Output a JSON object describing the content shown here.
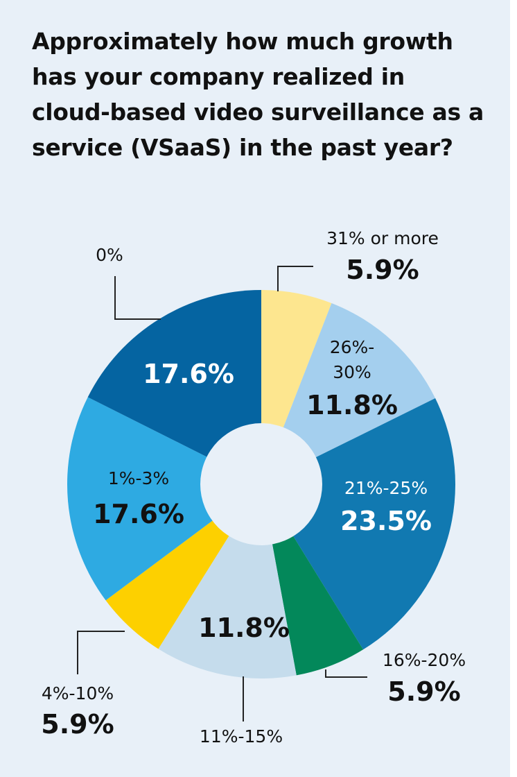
{
  "title": "Approximately how much growth has your company realized in cloud-based video surveillance as a service (VSaaS) in the past year?",
  "chart_data": {
    "type": "pie",
    "title": "Approximately how much growth has your company realized in cloud-based video surveillance as a service (VSaaS) in the past year?",
    "categories": [
      "31% or more",
      "26%-30%",
      "21%-25%",
      "16%-20%",
      "11%-15%",
      "4%-10%",
      "1%-3%",
      "0%"
    ],
    "values": [
      5.9,
      11.8,
      23.5,
      5.9,
      11.8,
      5.9,
      17.6,
      17.6
    ],
    "value_labels": [
      "5.9%",
      "11.8%",
      "23.5%",
      "5.9%",
      "11.8%",
      "5.9%",
      "17.6%",
      "17.6%"
    ],
    "category_labels": [
      "31% or more",
      "26%-\n30%",
      "21%-25%",
      "16%-20%",
      "",
      "4%-10%",
      "1%-3%",
      "0%"
    ],
    "bottom_label": "11%-15%",
    "colors": [
      "#fde68f",
      "#a4cfee",
      "#1179b1",
      "#03885a",
      "#c5dcec",
      "#fdd000",
      "#2eaae2",
      "#0564a1"
    ],
    "donut": true
  }
}
